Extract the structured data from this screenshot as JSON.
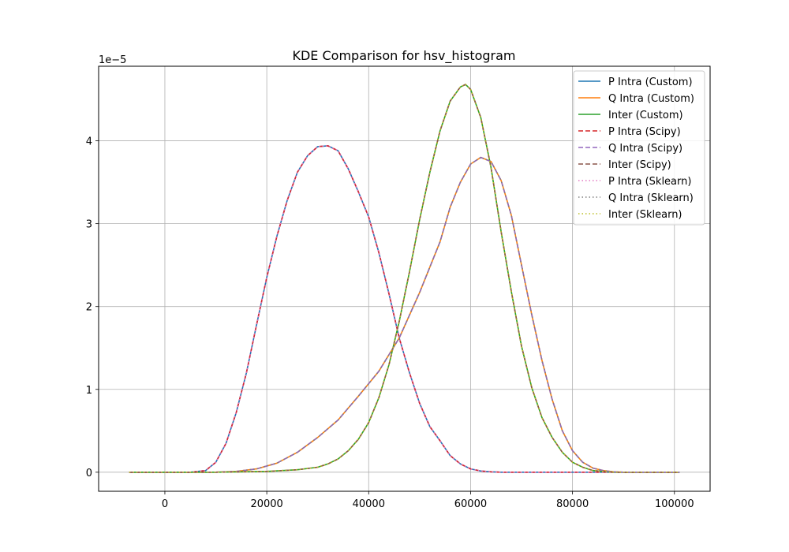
{
  "chart_data": {
    "type": "line",
    "title": "KDE Comparison for hsv_histogram",
    "xlabel": "",
    "ylabel": "",
    "y_offset_label": "1e−5",
    "xlim": [
      -13000,
      107000
    ],
    "ylim": [
      -0.23,
      4.9
    ],
    "x_ticks": [
      0,
      20000,
      40000,
      60000,
      80000,
      100000
    ],
    "x_tick_labels": [
      "0",
      "20000",
      "40000",
      "60000",
      "80000",
      "100000"
    ],
    "y_ticks": [
      0,
      1,
      2,
      3,
      4
    ],
    "y_tick_labels": [
      "0",
      "1",
      "2",
      "3",
      "4"
    ],
    "grid": true,
    "legend_position": "upper-right",
    "colors": {
      "p_custom": "#1f77b4",
      "q_custom": "#ff7f0e",
      "inter_custom": "#2ca02c",
      "p_scipy": "#d62728",
      "q_scipy": "#9467bd",
      "inter_scipy": "#8c564b",
      "p_sklearn": "#e377c2",
      "q_sklearn": "#7f7f7f",
      "inter_sklearn": "#bcbd22"
    },
    "curves": {
      "P": {
        "x": [
          -7000,
          0,
          5000,
          8000,
          10000,
          12000,
          14000,
          16000,
          18000,
          20000,
          22000,
          24000,
          26000,
          28000,
          30000,
          32000,
          34000,
          36000,
          38000,
          40000,
          42000,
          44000,
          46000,
          48000,
          50000,
          52000,
          54000,
          56000,
          58000,
          60000,
          62000,
          64000,
          66000,
          70000,
          80000,
          90000,
          101000
        ],
        "y": [
          0,
          0,
          0,
          0.02,
          0.12,
          0.35,
          0.72,
          1.2,
          1.78,
          2.35,
          2.85,
          3.28,
          3.62,
          3.82,
          3.93,
          3.94,
          3.88,
          3.66,
          3.38,
          3.08,
          2.65,
          2.15,
          1.62,
          1.2,
          0.83,
          0.55,
          0.38,
          0.2,
          0.1,
          0.04,
          0.015,
          0.005,
          0,
          0,
          0,
          0,
          0
        ]
      },
      "Q": {
        "x": [
          -7000,
          0,
          10000,
          14000,
          18000,
          22000,
          26000,
          30000,
          34000,
          38000,
          42000,
          46000,
          50000,
          54000,
          56000,
          58000,
          60000,
          62000,
          64000,
          66000,
          68000,
          70000,
          72000,
          74000,
          76000,
          78000,
          80000,
          82000,
          84000,
          86000,
          88000,
          90000,
          101000
        ],
        "y": [
          0,
          0,
          0,
          0.01,
          0.04,
          0.11,
          0.24,
          0.42,
          0.63,
          0.92,
          1.22,
          1.62,
          2.17,
          2.78,
          3.2,
          3.5,
          3.72,
          3.8,
          3.75,
          3.52,
          3.1,
          2.5,
          1.9,
          1.35,
          0.88,
          0.5,
          0.26,
          0.12,
          0.05,
          0.02,
          0.005,
          0,
          0
        ]
      },
      "Inter": {
        "x": [
          -7000,
          0,
          10000,
          20000,
          26000,
          30000,
          32000,
          34000,
          36000,
          38000,
          40000,
          42000,
          44000,
          46000,
          48000,
          50000,
          52000,
          54000,
          56000,
          58000,
          59000,
          60000,
          62000,
          64000,
          66000,
          68000,
          70000,
          72000,
          74000,
          76000,
          78000,
          80000,
          82000,
          84000,
          86000,
          88000,
          101000
        ],
        "y": [
          0,
          0,
          0,
          0.01,
          0.03,
          0.06,
          0.1,
          0.16,
          0.26,
          0.4,
          0.6,
          0.9,
          1.3,
          1.82,
          2.42,
          3.05,
          3.62,
          4.12,
          4.48,
          4.65,
          4.68,
          4.62,
          4.28,
          3.68,
          2.9,
          2.18,
          1.52,
          1.02,
          0.66,
          0.42,
          0.24,
          0.12,
          0.06,
          0.02,
          0.01,
          0,
          0
        ]
      }
    },
    "series": [
      {
        "name": "P Intra (Custom)",
        "curve": "P",
        "color": "#1f77b4",
        "style": "solid"
      },
      {
        "name": "Q Intra (Custom)",
        "curve": "Q",
        "color": "#ff7f0e",
        "style": "solid"
      },
      {
        "name": "Inter (Custom)",
        "curve": "Inter",
        "color": "#2ca02c",
        "style": "solid"
      },
      {
        "name": "P Intra (Scipy)",
        "curve": "P",
        "color": "#d62728",
        "style": "dashed"
      },
      {
        "name": "Q Intra (Scipy)",
        "curve": "Q",
        "color": "#9467bd",
        "style": "dashed"
      },
      {
        "name": "Inter (Scipy)",
        "curve": "Inter",
        "color": "#8c564b",
        "style": "dashed"
      },
      {
        "name": "P Intra (Sklearn)",
        "curve": "P",
        "color": "#e377c2",
        "style": "dotted"
      },
      {
        "name": "Q Intra (Sklearn)",
        "curve": "Q",
        "color": "#7f7f7f",
        "style": "dotted"
      },
      {
        "name": "Inter (Sklearn)",
        "curve": "Inter",
        "color": "#bcbd22",
        "style": "dotted"
      }
    ]
  }
}
